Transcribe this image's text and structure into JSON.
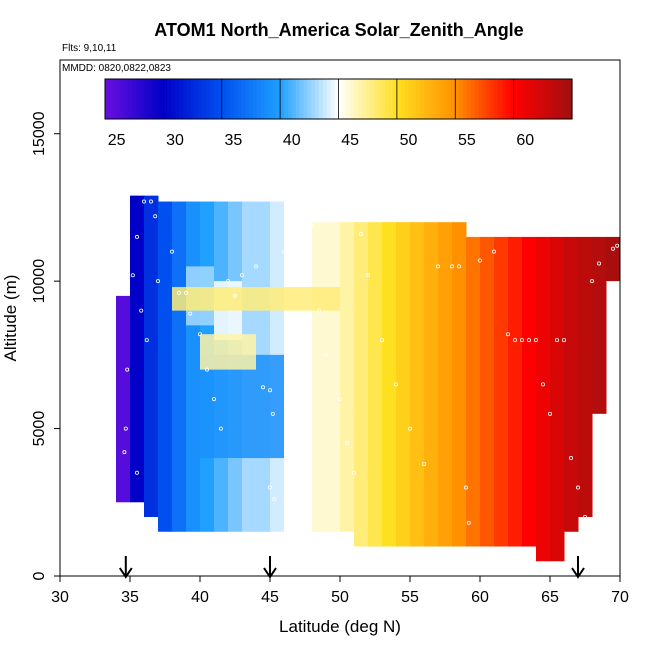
{
  "chart_data": {
    "type": "heatmap",
    "title": "ATOM1 North_America Solar_Zenith_Angle",
    "flights_note": "Flts: 9,10,11",
    "date_note": "MMDD: 0820,0822,0823",
    "xlabel": "Latitude (deg N)",
    "ylabel": "Altitude (m)",
    "xlim": [
      30,
      70
    ],
    "ylim": [
      0,
      17500
    ],
    "x_ticks": [
      "30",
      "35",
      "40",
      "45",
      "50",
      "55",
      "60",
      "65",
      "70"
    ],
    "y_ticks": [
      "0",
      "5000",
      "10000",
      "15000"
    ],
    "grid": false,
    "colorbar": {
      "range": [
        24,
        64
      ],
      "ticks": [
        "25",
        "30",
        "35",
        "40",
        "45",
        "50",
        "55",
        "60"
      ],
      "placement": "top-inside",
      "colors": [
        "#6b10e0",
        "#0000c8",
        "#0050f0",
        "#20a0ff",
        "#ffffff",
        "#ffe020",
        "#ff9000",
        "#ff0000",
        "#a01010"
      ]
    },
    "arrows_at_latitude": [
      34.7,
      45.0,
      67.0
    ],
    "columns": [
      {
        "lat": 34.5,
        "bins": [
          [
            2500,
            9500,
            25
          ]
        ]
      },
      {
        "lat": 35.5,
        "bins": [
          [
            2500,
            12900,
            29
          ]
        ]
      },
      {
        "lat": 36.5,
        "bins": [
          [
            2000,
            12900,
            32
          ]
        ]
      },
      {
        "lat": 37.5,
        "bins": [
          [
            1500,
            12700,
            34
          ]
        ]
      },
      {
        "lat": 38.5,
        "bins": [
          [
            1500,
            12700,
            36
          ]
        ]
      },
      {
        "lat": 39.5,
        "bins": [
          [
            1500,
            12700,
            38
          ]
        ]
      },
      {
        "lat": 40.5,
        "bins": [
          [
            1500,
            12700,
            39
          ]
        ]
      },
      {
        "lat": 41.5,
        "bins": [
          [
            1500,
            12700,
            40
          ]
        ]
      },
      {
        "lat": 42.5,
        "bins": [
          [
            1500,
            12700,
            41
          ]
        ]
      },
      {
        "lat": 43.5,
        "bins": [
          [
            1500,
            12700,
            42
          ]
        ]
      },
      {
        "lat": 44.5,
        "bins": [
          [
            1500,
            12700,
            42
          ]
        ]
      },
      {
        "lat": 45.5,
        "bins": [
          [
            1500,
            12700,
            43
          ]
        ]
      },
      {
        "lat": 46.5,
        "bins": [
          [
            1500,
            12700,
            44
          ]
        ]
      },
      {
        "lat": 47.5,
        "bins": [
          [
            1500,
            12700,
            44
          ]
        ]
      },
      {
        "lat": 48.5,
        "bins": [
          [
            1500,
            12000,
            45
          ]
        ]
      },
      {
        "lat": 49.5,
        "bins": [
          [
            1500,
            12000,
            45
          ]
        ]
      },
      {
        "lat": 50.5,
        "bins": [
          [
            1500,
            12000,
            46
          ]
        ]
      },
      {
        "lat": 51.5,
        "bins": [
          [
            1000,
            12000,
            47
          ]
        ]
      },
      {
        "lat": 52.5,
        "bins": [
          [
            1000,
            12000,
            48
          ]
        ]
      },
      {
        "lat": 53.5,
        "bins": [
          [
            1000,
            12000,
            49
          ]
        ]
      },
      {
        "lat": 54.5,
        "bins": [
          [
            1000,
            12000,
            50
          ]
        ]
      },
      {
        "lat": 55.5,
        "bins": [
          [
            1000,
            12000,
            51
          ]
        ]
      },
      {
        "lat": 56.5,
        "bins": [
          [
            1000,
            12000,
            52
          ]
        ]
      },
      {
        "lat": 57.5,
        "bins": [
          [
            1000,
            12000,
            53
          ]
        ]
      },
      {
        "lat": 58.5,
        "bins": [
          [
            1000,
            12000,
            54
          ]
        ]
      },
      {
        "lat": 59.5,
        "bins": [
          [
            1000,
            11500,
            55
          ]
        ]
      },
      {
        "lat": 60.5,
        "bins": [
          [
            1000,
            11500,
            56
          ]
        ]
      },
      {
        "lat": 61.5,
        "bins": [
          [
            1000,
            11500,
            57
          ]
        ]
      },
      {
        "lat": 62.5,
        "bins": [
          [
            1000,
            11500,
            58
          ]
        ]
      },
      {
        "lat": 63.5,
        "bins": [
          [
            1000,
            11500,
            59
          ]
        ]
      },
      {
        "lat": 64.5,
        "bins": [
          [
            500,
            11500,
            60
          ]
        ]
      },
      {
        "lat": 65.5,
        "bins": [
          [
            500,
            11500,
            61
          ]
        ]
      },
      {
        "lat": 66.5,
        "bins": [
          [
            1500,
            11500,
            62
          ]
        ]
      },
      {
        "lat": 67.5,
        "bins": [
          [
            2000,
            11500,
            62.5
          ]
        ]
      },
      {
        "lat": 68.5,
        "bins": [
          [
            5500,
            11500,
            63
          ]
        ]
      },
      {
        "lat": 69.5,
        "bins": [
          [
            10000,
            11500,
            63.5
          ]
        ]
      }
    ],
    "inner_features": [
      {
        "lat": [
          39,
          41
        ],
        "alt": [
          8500,
          10500
        ],
        "value": 42
      },
      {
        "lat": [
          41,
          43
        ],
        "alt": [
          8000,
          10000
        ],
        "value": 44
      },
      {
        "lat": [
          40,
          46
        ],
        "alt": [
          4000,
          7500
        ],
        "value": 38
      },
      {
        "lat": [
          38,
          50
        ],
        "alt": [
          9000,
          9800
        ],
        "value": 47
      },
      {
        "lat": [
          40,
          44
        ],
        "alt": [
          7000,
          8200
        ],
        "value": 46
      }
    ],
    "flight_points": [
      [
        36,
        12700
      ],
      [
        36.5,
        12700
      ],
      [
        36.8,
        12200
      ],
      [
        35.5,
        11500
      ],
      [
        35.2,
        10200
      ],
      [
        35.8,
        9000
      ],
      [
        34.8,
        7000
      ],
      [
        34.7,
        5000
      ],
      [
        34.6,
        4200
      ],
      [
        35.5,
        3500
      ],
      [
        36.2,
        8000
      ],
      [
        37,
        10000
      ],
      [
        38,
        11000
      ],
      [
        38.5,
        9600
      ],
      [
        39,
        9600
      ],
      [
        39.3,
        8900
      ],
      [
        40,
        8200
      ],
      [
        40.5,
        7000
      ],
      [
        41,
        6000
      ],
      [
        41.5,
        5000
      ],
      [
        42,
        10000
      ],
      [
        42.5,
        9500
      ],
      [
        43,
        10200
      ],
      [
        44,
        10500
      ],
      [
        44.5,
        6400
      ],
      [
        45,
        6300
      ],
      [
        45.2,
        5500
      ],
      [
        45,
        3000
      ],
      [
        45.3,
        2600
      ],
      [
        46,
        11000
      ],
      [
        47.5,
        11900
      ],
      [
        48,
        11900
      ],
      [
        48.5,
        9000
      ],
      [
        49,
        7500
      ],
      [
        50,
        6000
      ],
      [
        50.5,
        4500
      ],
      [
        51,
        3500
      ],
      [
        51.5,
        11600
      ],
      [
        52,
        10200
      ],
      [
        53,
        8000
      ],
      [
        54,
        6500
      ],
      [
        55,
        5000
      ],
      [
        56,
        3800
      ],
      [
        57,
        10500
      ],
      [
        58,
        10500
      ],
      [
        58.5,
        10500
      ],
      [
        59,
        3000
      ],
      [
        59.2,
        1800
      ],
      [
        60,
        10700
      ],
      [
        61,
        11000
      ],
      [
        62,
        8200
      ],
      [
        62.5,
        8000
      ],
      [
        63,
        8000
      ],
      [
        63.5,
        8000
      ],
      [
        64,
        8000
      ],
      [
        64.5,
        6500
      ],
      [
        65,
        5500
      ],
      [
        65.5,
        8000
      ],
      [
        66,
        8000
      ],
      [
        66.5,
        4000
      ],
      [
        67,
        3000
      ],
      [
        67.5,
        2000
      ],
      [
        68,
        10000
      ],
      [
        68.5,
        10600
      ],
      [
        69.5,
        11100
      ],
      [
        69.8,
        11200
      ]
    ]
  }
}
